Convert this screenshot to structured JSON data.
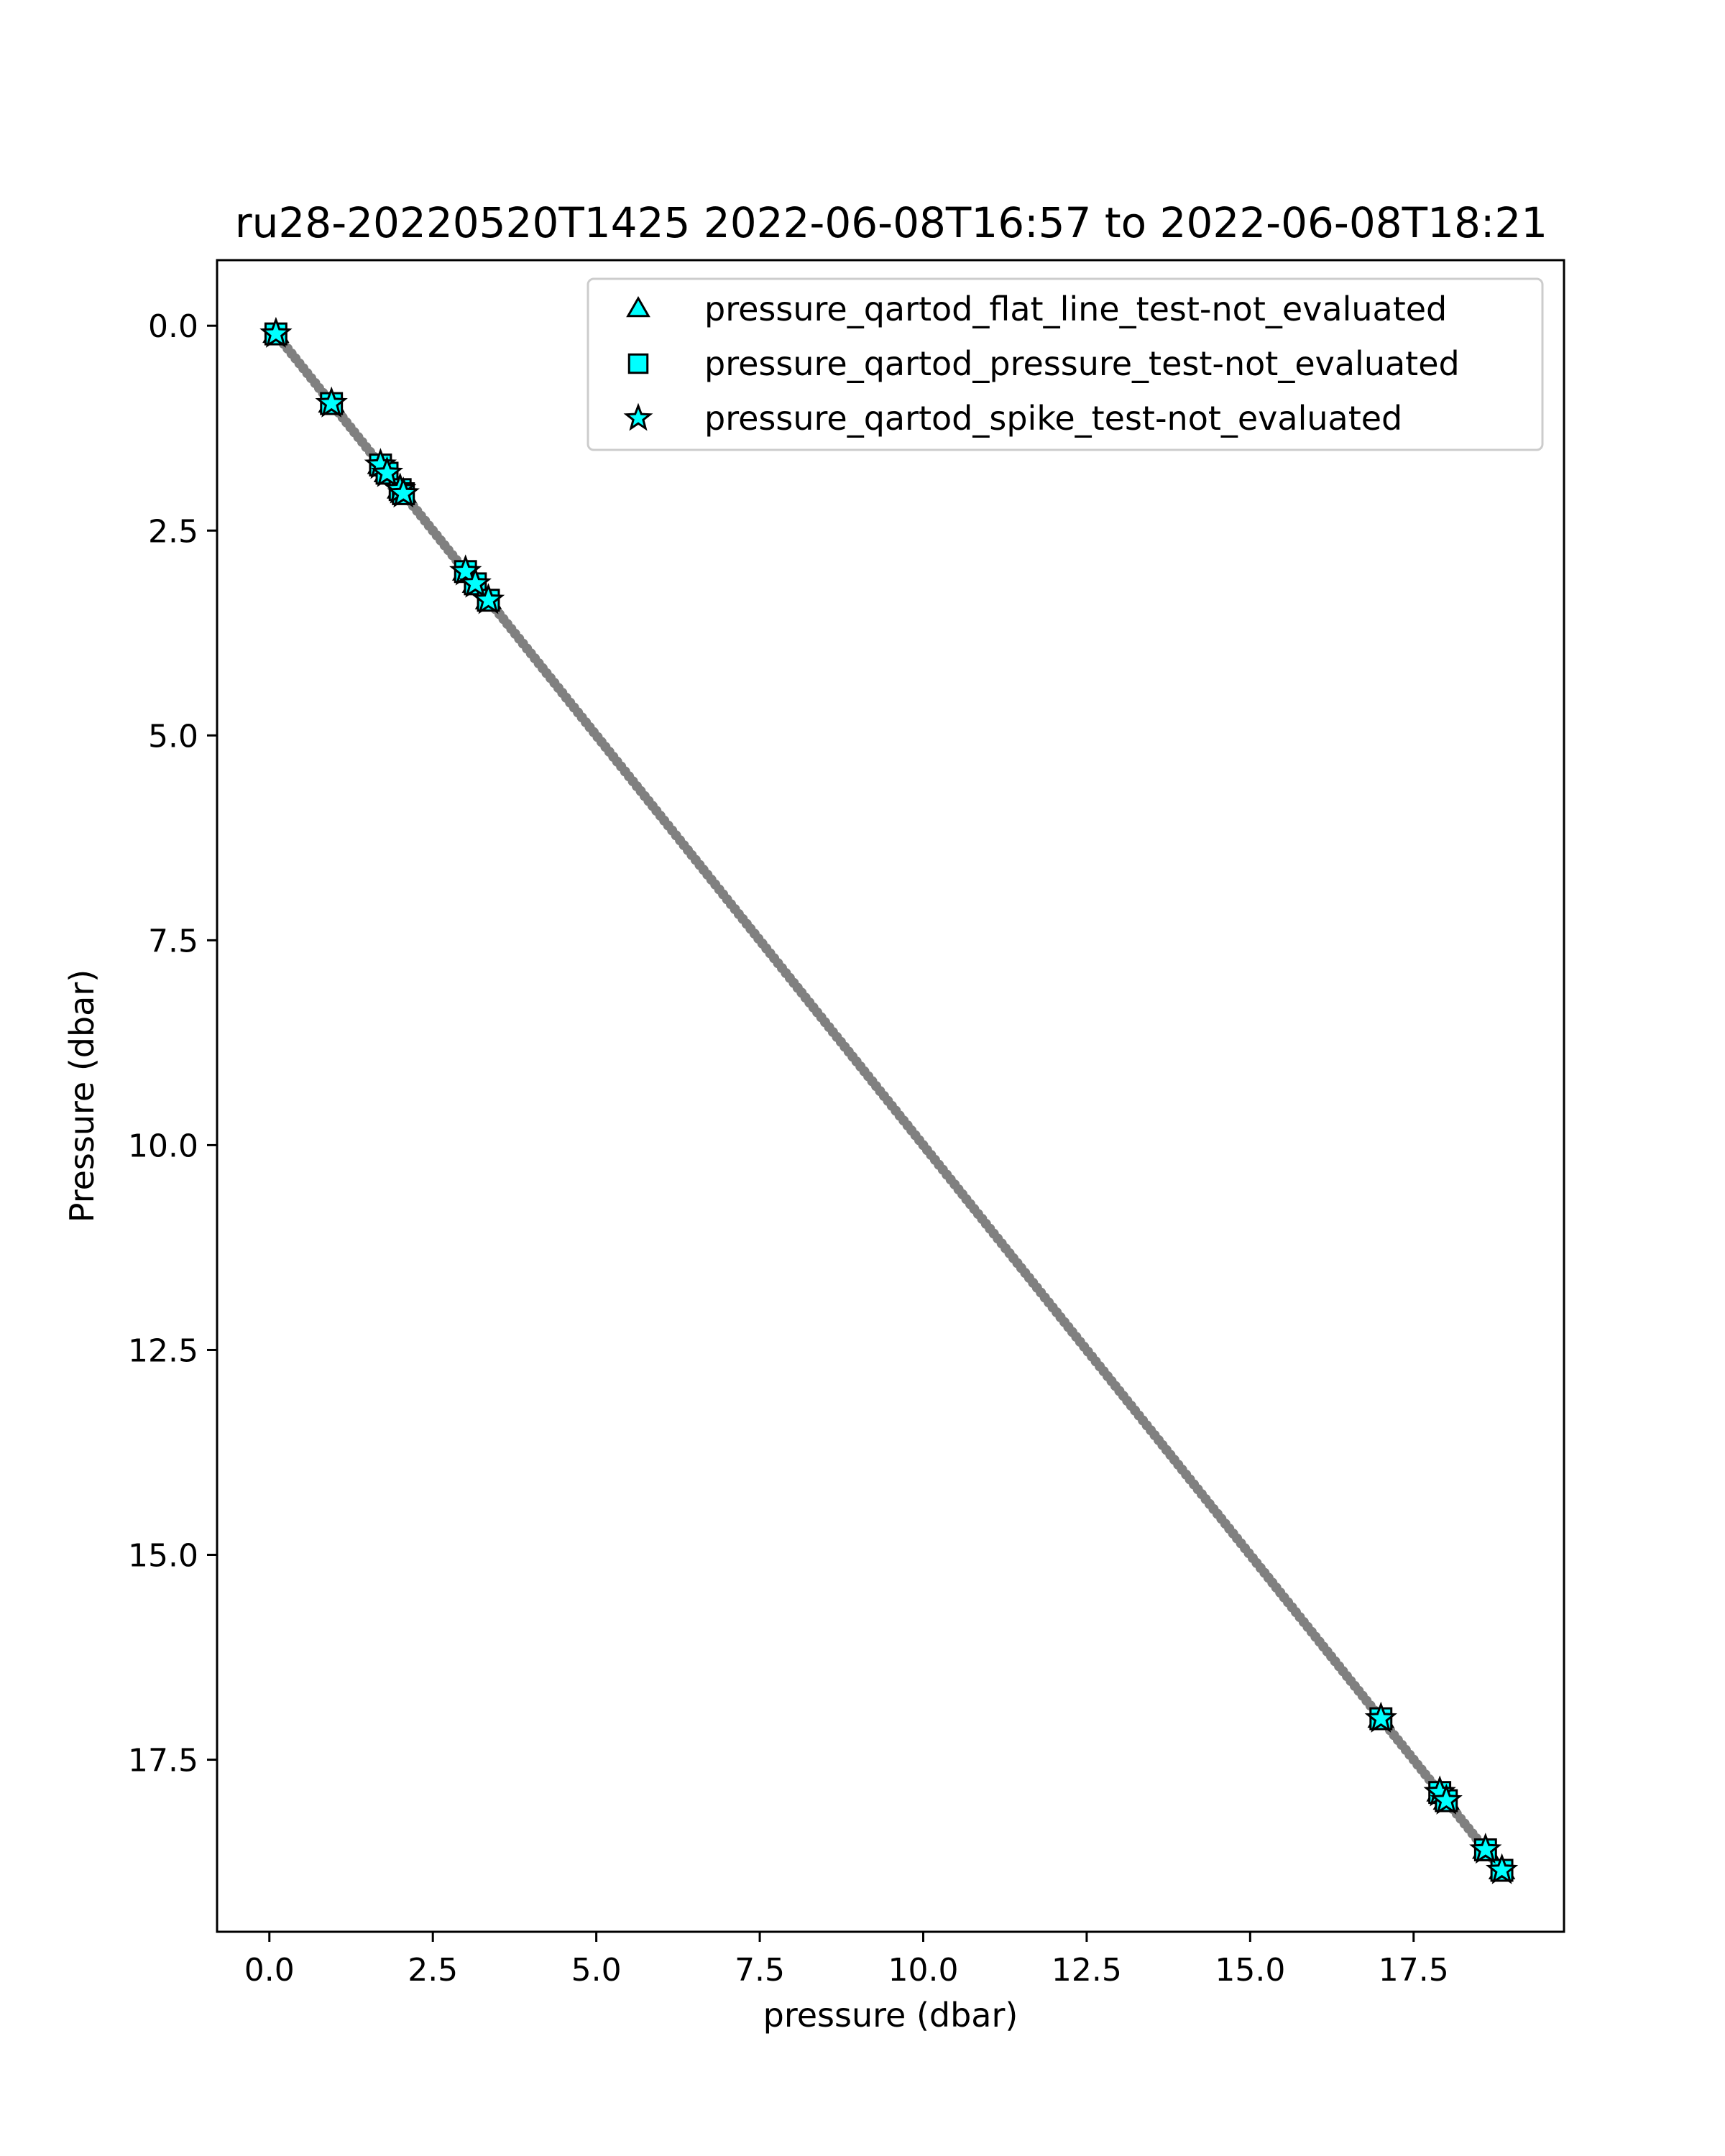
{
  "chart_data": {
    "type": "scatter",
    "title": "ru28-20220520T1425 2022-06-08T16:57 to 2022-06-08T18:21",
    "xlabel": "pressure (dbar)",
    "ylabel": "Pressure (dbar)",
    "xlim": [
      -0.8,
      19.8
    ],
    "ylim": [
      19.6,
      -0.8
    ],
    "y_inverted": true,
    "grid": false,
    "legend_position": "top-right",
    "x_ticks": [
      "0.0",
      "2.5",
      "5.0",
      "7.5",
      "10.0",
      "12.5",
      "15.0",
      "17.5"
    ],
    "x_tick_values": [
      0,
      2.5,
      5,
      7.5,
      10,
      12.5,
      15,
      17.5
    ],
    "y_ticks": [
      "0.0",
      "2.5",
      "5.0",
      "7.5",
      "10.0",
      "12.5",
      "15.0",
      "17.5"
    ],
    "y_tick_values": [
      0,
      2.5,
      5,
      7.5,
      10,
      12.5,
      15,
      17.5
    ],
    "profile": {
      "color": "#808080",
      "range": [
        0.1,
        18.85
      ]
    },
    "series": [
      {
        "name": "pressure_qartod_flat_line_test-not_evaluated",
        "marker": "triangle",
        "color": "#00ffff",
        "edge_color": "#000000",
        "points": [
          [
            0.1,
            0.1
          ],
          [
            0.95,
            0.95
          ],
          [
            1.7,
            1.7
          ],
          [
            1.8,
            1.8
          ],
          [
            2.0,
            2.0
          ],
          [
            2.05,
            2.05
          ],
          [
            3.0,
            3.0
          ],
          [
            3.15,
            3.15
          ],
          [
            3.35,
            3.35
          ],
          [
            17.0,
            17.0
          ],
          [
            17.9,
            17.9
          ],
          [
            18.0,
            18.0
          ],
          [
            18.6,
            18.6
          ],
          [
            18.85,
            18.85
          ]
        ]
      },
      {
        "name": "pressure_qartod_pressure_test-not_evaluated",
        "marker": "square",
        "color": "#00ffff",
        "edge_color": "#000000",
        "points": [
          [
            0.1,
            0.1
          ],
          [
            0.95,
            0.95
          ],
          [
            1.7,
            1.7
          ],
          [
            1.8,
            1.8
          ],
          [
            2.0,
            2.0
          ],
          [
            2.05,
            2.05
          ],
          [
            3.0,
            3.0
          ],
          [
            3.15,
            3.15
          ],
          [
            3.35,
            3.35
          ],
          [
            17.0,
            17.0
          ],
          [
            17.9,
            17.9
          ],
          [
            18.0,
            18.0
          ],
          [
            18.6,
            18.6
          ],
          [
            18.85,
            18.85
          ]
        ]
      },
      {
        "name": "pressure_qartod_spike_test-not_evaluated",
        "marker": "star",
        "color": "#00ffff",
        "edge_color": "#000000",
        "points": [
          [
            0.1,
            0.1
          ],
          [
            0.95,
            0.95
          ],
          [
            1.7,
            1.7
          ],
          [
            1.8,
            1.8
          ],
          [
            2.0,
            2.0
          ],
          [
            2.05,
            2.05
          ],
          [
            3.0,
            3.0
          ],
          [
            3.15,
            3.15
          ],
          [
            3.35,
            3.35
          ],
          [
            17.0,
            17.0
          ],
          [
            17.9,
            17.9
          ],
          [
            18.0,
            18.0
          ],
          [
            18.6,
            18.6
          ],
          [
            18.85,
            18.85
          ]
        ]
      }
    ]
  }
}
